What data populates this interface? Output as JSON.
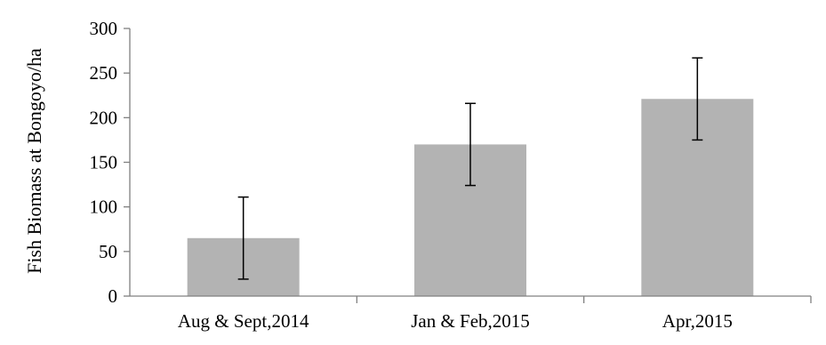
{
  "chart_data": {
    "type": "bar",
    "title": "",
    "xlabel": "",
    "ylabel": "Fish Biomass at Bongoyo/ha",
    "categories": [
      "Aug & Sept,2014",
      "Jan & Feb,2015",
      "Apr,2015"
    ],
    "values": [
      65,
      170,
      221
    ],
    "error_low": [
      19,
      124,
      175
    ],
    "error_high": [
      111,
      216,
      267
    ],
    "ylim": [
      0,
      300
    ],
    "yticks": [
      0,
      50,
      100,
      150,
      200,
      250,
      300
    ],
    "grid": false,
    "legend": "none",
    "colors": {
      "bar": "#b3b3b3",
      "error_bar": "#000000",
      "axis": "#808080"
    }
  }
}
